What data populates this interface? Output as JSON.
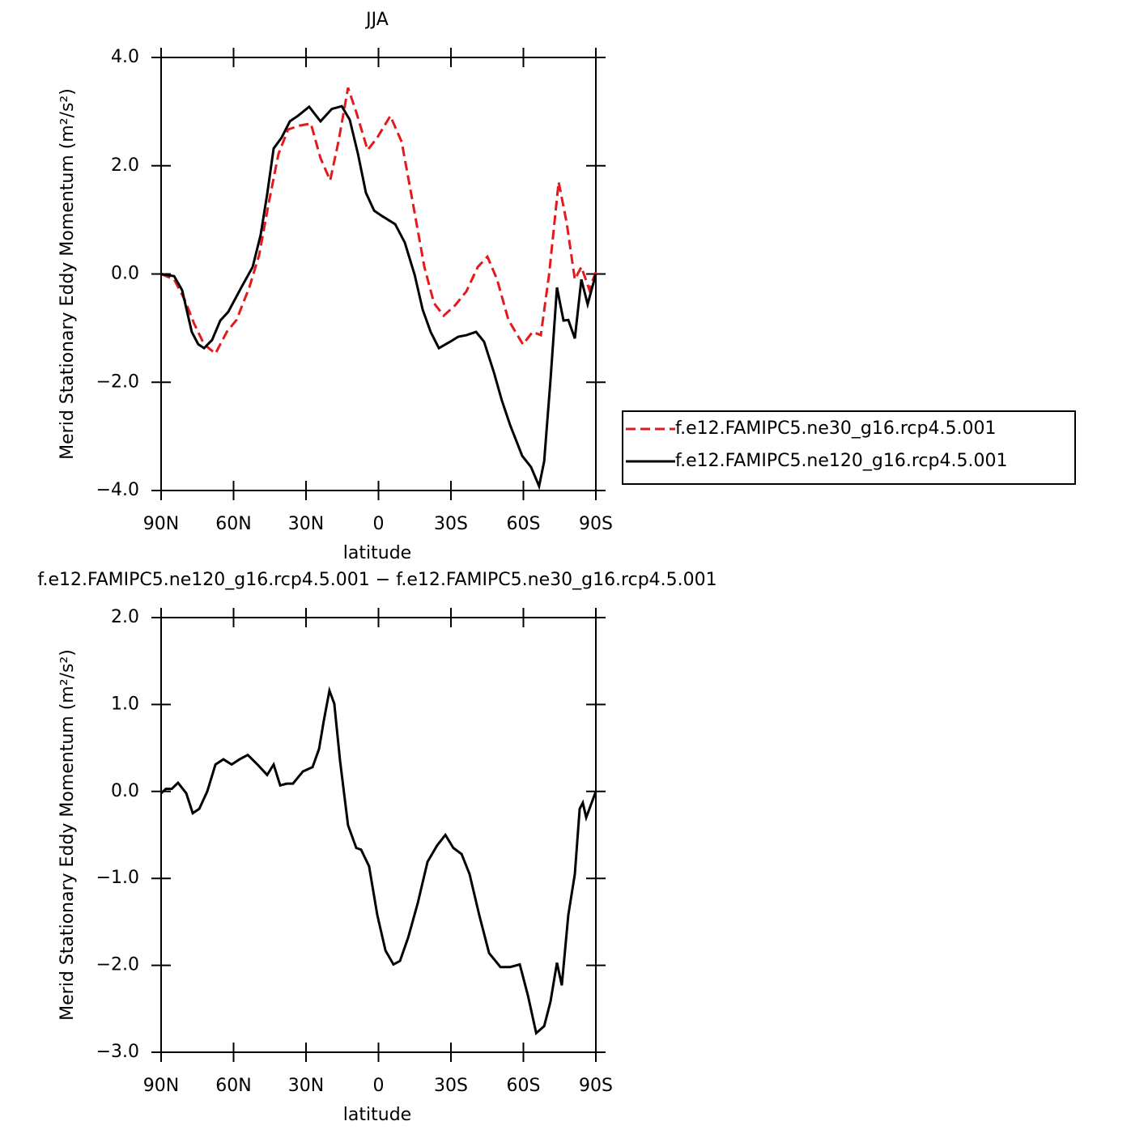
{
  "chart_data": [
    {
      "type": "line",
      "title": "JJA",
      "xlabel": "latitude",
      "ylabel": "Merid Stationary Eddy Momentum (m²/s²)",
      "xlim": [
        90,
        -90
      ],
      "xticks": [
        {
          "value": 90,
          "label": "90N"
        },
        {
          "value": 60,
          "label": "60N"
        },
        {
          "value": 30,
          "label": "30N"
        },
        0,
        {
          "value": -30,
          "label": "30S"
        },
        {
          "value": -60,
          "label": "60S"
        },
        {
          "value": -90,
          "label": "90S"
        }
      ],
      "ylim": [
        -4,
        4
      ],
      "yticks": [
        {
          "value": 4,
          "label": "4.0"
        },
        {
          "value": 2,
          "label": "2.0"
        },
        {
          "value": 0,
          "label": "0.0"
        },
        {
          "value": -2,
          "label": "−2.0"
        },
        {
          "value": -4,
          "label": "−4.0"
        }
      ],
      "series": [
        {
          "name": "f.e12.FAMIPC5.ne30_g16.rcp4.5.001",
          "color": "#e31a1c",
          "line_style": "dashed",
          "x": [
            90,
            84.6,
            80.3,
            76.3,
            72.2,
            67.5,
            62.8,
            58.8,
            53.5,
            49.4,
            45.4,
            41.4,
            37.4,
            32.7,
            28.0,
            24.0,
            20.0,
            16.6,
            12.6,
            9.2,
            4.5,
            0.5,
            -4.9,
            -9.6,
            -14.2,
            -19.0,
            -23.0,
            -27.0,
            -31.7,
            -36.4,
            -41.1,
            -45.1,
            -49.1,
            -53.8,
            -59.8,
            -63.8,
            -67.2,
            -70.6,
            -74.6,
            -77.9,
            -81.3,
            -84.0,
            -87.3,
            -90
          ],
          "values": [
            0.0,
            -0.1,
            -0.47,
            -0.92,
            -1.3,
            -1.47,
            -1.07,
            -0.85,
            -0.25,
            0.35,
            1.32,
            2.22,
            2.67,
            2.74,
            2.78,
            2.14,
            1.73,
            2.44,
            3.44,
            2.99,
            2.29,
            2.52,
            2.92,
            2.44,
            1.32,
            0.13,
            -0.54,
            -0.77,
            -0.58,
            -0.32,
            0.13,
            0.32,
            -0.1,
            -0.85,
            -1.3,
            -1.07,
            -1.13,
            -0.02,
            1.7,
            0.95,
            -0.1,
            0.13,
            -0.29,
            0.04
          ]
        },
        {
          "name": "f.e12.FAMIPC5.ne120_g16.rcp4.5.001",
          "color": "#000000",
          "line_style": "solid",
          "x": [
            90,
            84.6,
            81.3,
            77.3,
            74.6,
            72.2,
            68.9,
            65.5,
            62.2,
            56.8,
            52.1,
            48.8,
            46.1,
            43.4,
            40.1,
            36.7,
            33.4,
            28.7,
            24.0,
            19.3,
            15.2,
            11.9,
            8.5,
            5.2,
            1.8,
            -1.5,
            -6.9,
            -10.9,
            -15.0,
            -18.3,
            -21.6,
            -25.0,
            -29.7,
            -33.0,
            -36.4,
            -40.4,
            -43.7,
            -47.8,
            -51.1,
            -54.5,
            -59.5,
            -63.2,
            -66.5,
            -68.6,
            -71.2,
            -73.9,
            -76.6,
            -78.6,
            -81.3,
            -84.0,
            -86.6,
            -90
          ],
          "values": [
            0.0,
            -0.04,
            -0.3,
            -1.07,
            -1.3,
            -1.37,
            -1.22,
            -0.86,
            -0.7,
            -0.25,
            0.13,
            0.72,
            1.47,
            2.32,
            2.52,
            2.82,
            2.92,
            3.09,
            2.82,
            3.05,
            3.1,
            2.85,
            2.22,
            1.5,
            1.17,
            1.07,
            0.92,
            0.58,
            -0.02,
            -0.66,
            -1.07,
            -1.37,
            -1.25,
            -1.16,
            -1.13,
            -1.07,
            -1.25,
            -1.82,
            -2.34,
            -2.79,
            -3.36,
            -3.57,
            -3.92,
            -3.46,
            -1.97,
            -0.25,
            -0.86,
            -0.85,
            -1.19,
            -0.1,
            -0.56,
            0.0
          ]
        }
      ]
    },
    {
      "type": "line",
      "title": "f.e12.FAMIPC5.ne120_g16.rcp4.5.001 − f.e12.FAMIPC5.ne30_g16.rcp4.5.001",
      "xlabel": "latitude",
      "ylabel": "Merid Stationary Eddy Momentum (m²/s²)",
      "xlim": [
        90,
        -90
      ],
      "xticks": [
        {
          "value": 90,
          "label": "90N"
        },
        {
          "value": 60,
          "label": "60N"
        },
        {
          "value": 30,
          "label": "30N"
        },
        0,
        {
          "value": -30,
          "label": "30S"
        },
        {
          "value": -60,
          "label": "60S"
        },
        {
          "value": -90,
          "label": "90S"
        }
      ],
      "ylim": [
        -3,
        2
      ],
      "yticks": [
        {
          "value": 2,
          "label": "2.0"
        },
        {
          "value": 1,
          "label": "1.0"
        },
        {
          "value": 0,
          "label": "0.0"
        },
        {
          "value": -1,
          "label": "−1.0"
        },
        {
          "value": -2,
          "label": "−2.0"
        },
        {
          "value": -3,
          "label": "−3.0"
        }
      ],
      "series": [
        {
          "color": "#000000",
          "line_style": "solid",
          "x": [
            90,
            88.0,
            85.6,
            83.0,
            79.6,
            76.9,
            74.2,
            70.9,
            67.5,
            64.2,
            60.8,
            57.5,
            54.1,
            50.1,
            46.1,
            43.4,
            40.7,
            38.0,
            35.4,
            31.3,
            27.3,
            24.6,
            22.6,
            20.3,
            18.3,
            15.9,
            12.6,
            9.2,
            7.2,
            3.9,
            0.5,
            -2.9,
            -6.2,
            -8.9,
            -12.3,
            -16.3,
            -20.3,
            -24.3,
            -27.7,
            -31.0,
            -34.4,
            -37.7,
            -41.7,
            -45.8,
            -50.5,
            -54.5,
            -58.5,
            -61.9,
            -65.3,
            -68.6,
            -71.2,
            -73.9,
            -75.9,
            -78.6,
            -81.3,
            -83.3,
            -84.6,
            -86.0,
            -90
          ],
          "values": [
            -0.02,
            0.03,
            0.03,
            0.1,
            -0.02,
            -0.25,
            -0.2,
            0.0,
            0.31,
            0.37,
            0.31,
            0.37,
            0.42,
            0.31,
            0.19,
            0.31,
            0.07,
            0.09,
            0.09,
            0.23,
            0.28,
            0.49,
            0.82,
            1.16,
            1.01,
            0.35,
            -0.39,
            -0.65,
            -0.67,
            -0.86,
            -1.42,
            -1.83,
            -1.99,
            -1.95,
            -1.68,
            -1.28,
            -0.81,
            -0.62,
            -0.5,
            -0.65,
            -0.72,
            -0.95,
            -1.42,
            -1.86,
            -2.02,
            -2.02,
            -1.99,
            -2.35,
            -2.78,
            -2.7,
            -2.42,
            -1.97,
            -2.23,
            -1.42,
            -0.95,
            -0.2,
            -0.13,
            -0.3,
            0.0
          ]
        }
      ]
    }
  ]
}
